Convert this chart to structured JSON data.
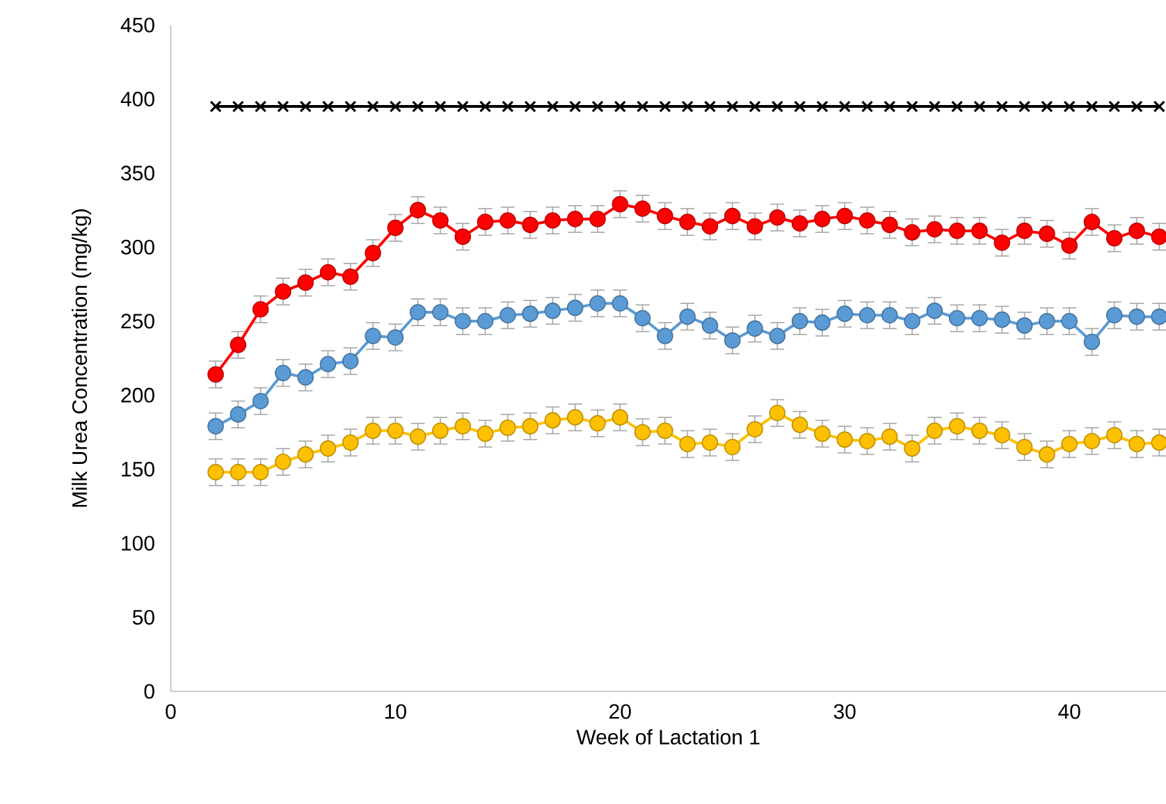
{
  "chart_data": {
    "type": "line",
    "xlabel": "Week of Lactation 1",
    "ylabel": "Milk Urea Concentration (mg/kg)",
    "x": [
      2,
      3,
      4,
      5,
      6,
      7,
      8,
      9,
      10,
      11,
      12,
      13,
      14,
      15,
      16,
      17,
      18,
      19,
      20,
      21,
      22,
      23,
      24,
      25,
      26,
      27,
      28,
      29,
      30,
      31,
      32,
      33,
      34,
      35,
      36,
      37,
      38,
      39,
      40,
      41,
      42,
      43,
      44
    ],
    "series": [
      {
        "color": "#000000",
        "marker": "cross",
        "values": [
          395,
          395,
          395,
          395,
          395,
          395,
          395,
          395,
          395,
          395,
          395,
          395,
          395,
          395,
          395,
          395,
          395,
          395,
          395,
          395,
          395,
          395,
          395,
          395,
          395,
          395,
          395,
          395,
          395,
          395,
          395,
          395,
          395,
          395,
          395,
          395,
          395,
          395,
          395,
          395,
          395,
          395,
          395
        ]
      },
      {
        "color": "#ff0000",
        "marker": "circle",
        "values": [
          214,
          234,
          258,
          270,
          276,
          283,
          280,
          296,
          313,
          325,
          318,
          307,
          317,
          318,
          315,
          318,
          319,
          319,
          329,
          326,
          321,
          317,
          314,
          321,
          314,
          320,
          316,
          319,
          321,
          318,
          315,
          310,
          312,
          311,
          311,
          303,
          311,
          309,
          301,
          317,
          306,
          311,
          307
        ],
        "errors": [
          9,
          9,
          9,
          9,
          9,
          9,
          9,
          9,
          9,
          9,
          9,
          9,
          9,
          9,
          9,
          9,
          9,
          9,
          9,
          9,
          9,
          9,
          9,
          9,
          9,
          9,
          9,
          9,
          9,
          9,
          9,
          9,
          9,
          9,
          9,
          9,
          9,
          9,
          9,
          9,
          9,
          9,
          9
        ]
      },
      {
        "color": "#5b9bd5",
        "marker": "circle",
        "values": [
          179,
          187,
          196,
          215,
          212,
          221,
          223,
          240,
          239,
          256,
          256,
          250,
          250,
          254,
          255,
          257,
          259,
          262,
          262,
          252,
          240,
          253,
          247,
          237,
          245,
          240,
          250,
          249,
          255,
          254,
          254,
          250,
          257,
          252,
          252,
          251,
          247,
          250,
          250,
          236,
          254,
          253,
          253
        ],
        "errors": [
          9,
          9,
          9,
          9,
          9,
          9,
          9,
          9,
          9,
          9,
          9,
          9,
          9,
          9,
          9,
          9,
          9,
          9,
          9,
          9,
          9,
          9,
          9,
          9,
          9,
          9,
          9,
          9,
          9,
          9,
          9,
          9,
          9,
          9,
          9,
          9,
          9,
          9,
          9,
          9,
          9,
          9,
          9
        ]
      },
      {
        "color": "#ffc000",
        "marker": "circle",
        "values": [
          148,
          148,
          148,
          155,
          160,
          164,
          168,
          176,
          176,
          172,
          176,
          179,
          174,
          178,
          179,
          183,
          185,
          181,
          185,
          175,
          176,
          167,
          168,
          165,
          177,
          188,
          180,
          174,
          170,
          169,
          172,
          164,
          176,
          179,
          176,
          173,
          165,
          160,
          167,
          169,
          173,
          167,
          168
        ],
        "errors": [
          9,
          9,
          9,
          9,
          9,
          9,
          9,
          9,
          9,
          9,
          9,
          9,
          9,
          9,
          9,
          9,
          9,
          9,
          9,
          9,
          9,
          9,
          9,
          9,
          9,
          9,
          9,
          9,
          9,
          9,
          9,
          9,
          9,
          9,
          9,
          9,
          9,
          9,
          9,
          9,
          9,
          9,
          9
        ]
      }
    ],
    "xlim": [
      0,
      44.3
    ],
    "ylim": [
      0,
      450
    ],
    "xticks": [
      0,
      10,
      20,
      30,
      40
    ],
    "yticks": [
      0,
      50,
      100,
      150,
      200,
      250,
      300,
      350,
      400,
      450
    ],
    "grid": false,
    "line_style": "solid"
  }
}
